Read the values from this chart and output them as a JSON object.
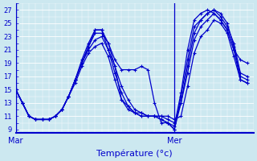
{
  "xlabel": "Température (°c)",
  "bg_color": "#cce8f0",
  "grid_color": "#ffffff",
  "line_color": "#0000cc",
  "yticks": [
    9,
    11,
    13,
    15,
    17,
    19,
    21,
    23,
    25,
    27
  ],
  "ylim": [
    8.5,
    28.0
  ],
  "xlim": [
    0,
    36
  ],
  "day_positions": [
    0,
    24
  ],
  "day_labels": [
    "Mar",
    "Mer"
  ],
  "series": [
    [
      15.0,
      13.0,
      11.0,
      10.5,
      10.5,
      10.5,
      11.0,
      12.0,
      14.0,
      16.5,
      19.0,
      21.5,
      24.0,
      24.0,
      22.0,
      19.5,
      18.0,
      18.0,
      18.0,
      18.5,
      18.0,
      13.0,
      10.0,
      10.0,
      9.5,
      14.5,
      21.0,
      25.5,
      26.5,
      27.0,
      26.5,
      25.5,
      24.0,
      21.0,
      19.5,
      19.0
    ],
    [
      15.0,
      13.0,
      11.0,
      10.5,
      10.5,
      10.5,
      11.0,
      12.0,
      14.0,
      16.5,
      19.0,
      21.5,
      23.5,
      23.5,
      22.0,
      18.5,
      13.5,
      12.5,
      11.5,
      11.5,
      11.0,
      11.0,
      10.5,
      10.0,
      9.0,
      13.0,
      18.5,
      23.5,
      25.5,
      26.5,
      27.0,
      26.5,
      25.0,
      21.5,
      17.0,
      16.5
    ],
    [
      15.0,
      13.0,
      11.0,
      10.5,
      10.5,
      10.5,
      11.0,
      12.0,
      14.0,
      16.5,
      19.5,
      22.0,
      24.0,
      24.0,
      21.0,
      18.5,
      15.5,
      13.5,
      12.0,
      11.5,
      11.0,
      11.0,
      10.5,
      10.0,
      9.0,
      14.0,
      19.5,
      24.5,
      25.5,
      26.5,
      27.0,
      26.0,
      24.5,
      22.0,
      17.5,
      17.0
    ],
    [
      15.0,
      13.0,
      11.0,
      10.5,
      10.5,
      10.5,
      11.0,
      12.0,
      14.0,
      16.5,
      19.0,
      21.0,
      22.5,
      23.0,
      21.0,
      17.5,
      14.5,
      12.5,
      11.5,
      11.0,
      11.0,
      11.0,
      11.0,
      10.5,
      10.0,
      13.0,
      17.5,
      22.5,
      24.5,
      25.5,
      26.5,
      25.5,
      24.0,
      21.0,
      16.5,
      16.0
    ],
    [
      15.0,
      13.0,
      11.0,
      10.5,
      10.5,
      10.5,
      11.0,
      12.0,
      14.0,
      16.0,
      18.5,
      20.5,
      21.5,
      22.0,
      20.0,
      16.5,
      13.5,
      12.0,
      11.5,
      11.0,
      11.0,
      11.0,
      11.0,
      11.0,
      10.5,
      11.0,
      15.5,
      20.5,
      23.0,
      24.0,
      25.5,
      25.0,
      23.5,
      20.0,
      16.5,
      16.0
    ]
  ],
  "n_points": 36,
  "xlabel_fontsize": 8,
  "tick_fontsize": 6,
  "day_fontsize": 7,
  "linewidth": 0.9,
  "markersize": 3.0,
  "markeredgewidth": 0.8
}
